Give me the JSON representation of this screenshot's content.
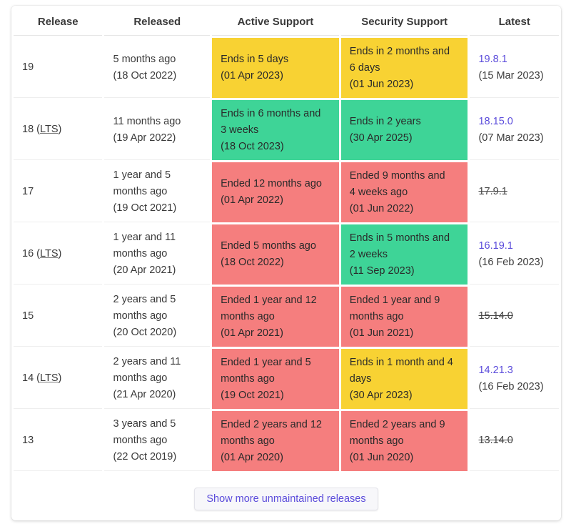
{
  "headers": {
    "release": "Release",
    "released": "Released",
    "active": "Active Support",
    "security": "Security Support",
    "latest": "Latest"
  },
  "rows": [
    {
      "release": "19",
      "lts_label": "",
      "released": [
        "5 months ago",
        "(18 Oct 2022)"
      ],
      "active": [
        "Ends in 5 days",
        "(01 Apr 2023)"
      ],
      "active_status": "yellow",
      "security": [
        "Ends in 2 months and",
        "6 days",
        "(01 Jun 2023)"
      ],
      "security_status": "yellow",
      "latest_version": "19.8.1",
      "latest_date": "(15 Mar 2023)",
      "latest_eol": false
    },
    {
      "release": "18",
      "lts_label": "LTS",
      "released": [
        "11 months ago",
        "(19 Apr 2022)"
      ],
      "active": [
        "Ends in 6 months and",
        "3 weeks",
        "(18 Oct 2023)"
      ],
      "active_status": "green",
      "security": [
        "Ends in 2 years",
        "(30 Apr 2025)"
      ],
      "security_status": "green",
      "latest_version": "18.15.0",
      "latest_date": "(07 Mar 2023)",
      "latest_eol": false
    },
    {
      "release": "17",
      "lts_label": "",
      "released": [
        "1 year and 5",
        "months ago",
        "(19 Oct 2021)"
      ],
      "active": [
        "Ended 12 months ago",
        "(01 Apr 2022)"
      ],
      "active_status": "red",
      "security": [
        "Ended 9 months and",
        "4 weeks ago",
        "(01 Jun 2022)"
      ],
      "security_status": "red",
      "latest_version": "17.9.1",
      "latest_date": "",
      "latest_eol": true
    },
    {
      "release": "16",
      "lts_label": "LTS",
      "released": [
        "1 year and 11",
        "months ago",
        "(20 Apr 2021)"
      ],
      "active": [
        "Ended 5 months ago",
        "(18 Oct 2022)"
      ],
      "active_status": "red",
      "security": [
        "Ends in 5 months and",
        "2 weeks",
        "(11 Sep 2023)"
      ],
      "security_status": "green",
      "latest_version": "16.19.1",
      "latest_date": "(16 Feb 2023)",
      "latest_eol": false
    },
    {
      "release": "15",
      "lts_label": "",
      "released": [
        "2 years and 5",
        "months ago",
        "(20 Oct 2020)"
      ],
      "active": [
        "Ended 1 year and 12",
        "months ago",
        "(01 Apr 2021)"
      ],
      "active_status": "red",
      "security": [
        "Ended 1 year and 9",
        "months ago",
        "(01 Jun 2021)"
      ],
      "security_status": "red",
      "latest_version": "15.14.0",
      "latest_date": "",
      "latest_eol": true
    },
    {
      "release": "14",
      "lts_label": "LTS",
      "released": [
        "2 years and 11",
        "months ago",
        "(21 Apr 2020)"
      ],
      "active": [
        "Ended 1 year and 5",
        "months ago",
        "(19 Oct 2021)"
      ],
      "active_status": "red",
      "security": [
        "Ends in 1 month and 4",
        "days",
        "(30 Apr 2023)"
      ],
      "security_status": "yellow",
      "latest_version": "14.21.3",
      "latest_date": "(16 Feb 2023)",
      "latest_eol": false
    },
    {
      "release": "13",
      "lts_label": "",
      "released": [
        "3 years and 5",
        "months ago",
        "(22 Oct 2019)"
      ],
      "active": [
        "Ended 2 years and 12",
        "months ago",
        "(01 Apr 2020)"
      ],
      "active_status": "red",
      "security": [
        "Ended 2 years and 9",
        "months ago",
        "(01 Jun 2020)"
      ],
      "security_status": "red",
      "latest_version": "13.14.0",
      "latest_date": "",
      "latest_eol": true
    }
  ],
  "footer": {
    "show_more_label": "Show more unmaintained releases"
  },
  "colors": {
    "yellow": "#f8d233",
    "green": "#3ed497",
    "red": "#f57e7e",
    "link": "#5b4cdb"
  }
}
